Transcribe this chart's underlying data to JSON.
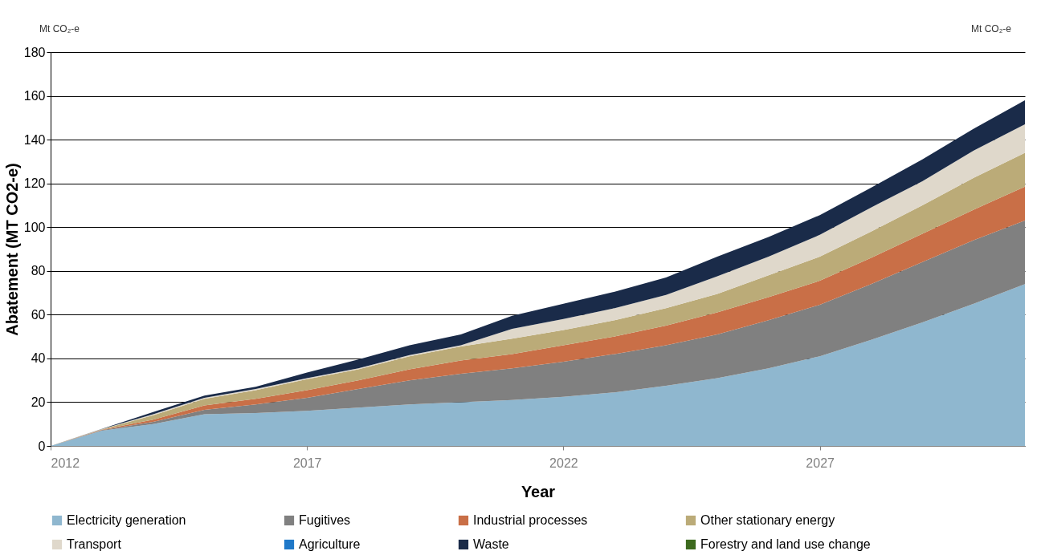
{
  "chart_data": {
    "type": "area",
    "stacked": true,
    "xlabel": "Year",
    "ylabel": "Abatement (MT CO2-e)",
    "annotations": [
      "Mt CO₂-e",
      "Mt CO₂-e"
    ],
    "x": [
      2012,
      2013,
      2014,
      2015,
      2016,
      2017,
      2018,
      2019,
      2020,
      2021,
      2022,
      2023,
      2024,
      2025,
      2026,
      2027,
      2028,
      2029,
      2030,
      2031
    ],
    "xlim": [
      2012,
      2031
    ],
    "xticks": [
      2012,
      2017,
      2022,
      2027
    ],
    "ylim": [
      0,
      180
    ],
    "yticks": [
      0,
      20,
      40,
      60,
      80,
      100,
      120,
      140,
      160,
      180
    ],
    "grid": "y",
    "legend": "bottom",
    "series": [
      {
        "name": "Electricity generation",
        "color": "#8fb7cf",
        "values": [
          0,
          7,
          10,
          14.5,
          15,
          16,
          17.5,
          19,
          20,
          21,
          22.5,
          24.5,
          27.5,
          31,
          35.5,
          41,
          48.5,
          56.5,
          65,
          74
        ]
      },
      {
        "name": "Fugitives",
        "color": "#808080",
        "values": [
          0,
          0.2,
          1,
          2,
          4,
          6,
          8.5,
          11,
          13,
          14.5,
          16,
          17.5,
          18.5,
          20,
          22,
          23.5,
          25.5,
          27.5,
          29,
          29
        ]
      },
      {
        "name": "Industrial processes",
        "color": "#c96f47",
        "values": [
          0,
          0.2,
          1,
          2,
          2.5,
          3.5,
          4,
          5,
          6,
          6.5,
          7.5,
          8,
          9,
          10,
          10.5,
          11,
          12,
          13,
          14,
          15.5
        ]
      },
      {
        "name": "Other stationary energy",
        "color": "#bbab78",
        "values": [
          0,
          0.2,
          2,
          3,
          4,
          5,
          5,
          6,
          6.5,
          7,
          7,
          7.5,
          8,
          8.5,
          10,
          11,
          12,
          13,
          14.5,
          15.5
        ]
      },
      {
        "name": "Transport",
        "color": "#dfd8cb",
        "values": [
          0,
          0.1,
          0.5,
          0.5,
          0.5,
          0.5,
          0.5,
          0.5,
          0.5,
          4.5,
          5,
          5.5,
          6,
          8,
          8.5,
          10,
          11,
          11,
          12.5,
          13
        ]
      },
      {
        "name": "Agriculture",
        "color": "#1f78c8",
        "values": [
          null,
          null,
          null,
          null,
          null,
          null,
          null,
          null,
          null,
          null,
          null,
          null,
          null,
          null,
          null,
          null,
          null,
          null,
          null,
          null
        ]
      },
      {
        "name": "Waste",
        "color": "#1a2b49",
        "values": [
          0,
          0.1,
          1,
          1,
          1,
          2.5,
          4,
          4.5,
          5,
          6,
          7,
          7.5,
          8,
          9,
          9,
          9,
          9,
          10,
          10,
          11
        ]
      },
      {
        "name": "Forestry and land use change",
        "color": "#3d6a1e",
        "values": [
          null,
          null,
          null,
          null,
          null,
          null,
          null,
          null,
          null,
          null,
          null,
          null,
          null,
          null,
          null,
          null,
          null,
          null,
          null,
          null
        ]
      }
    ]
  }
}
